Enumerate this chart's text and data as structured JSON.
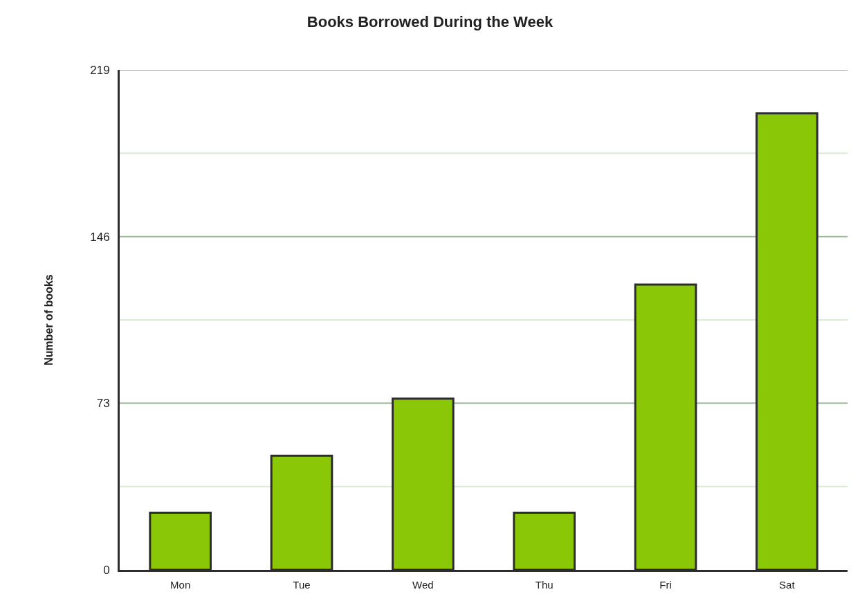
{
  "chart_data": {
    "type": "bar",
    "title": "Books Borrowed During the Week",
    "ylabel": "Number of books",
    "categories": [
      "Mon",
      "Tue",
      "Wed",
      "Thu",
      "Fri",
      "Sat"
    ],
    "values": [
      25,
      50,
      75,
      25,
      125,
      200
    ],
    "color": "#8ac807",
    "ylim": [
      0,
      219
    ],
    "yticks": [
      0,
      {
        "value": 36.5,
        "label": null
      },
      73,
      {
        "value": 109.5,
        "label": null
      },
      146,
      {
        "value": 182.5,
        "label": null
      },
      219
    ],
    "grid": "y",
    "legend": false
  }
}
